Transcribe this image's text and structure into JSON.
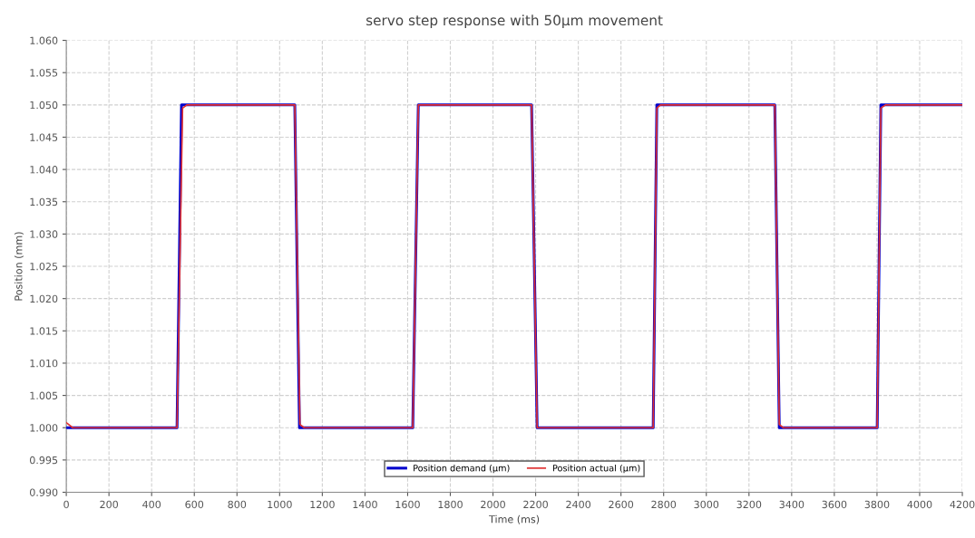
{
  "chart_data": {
    "type": "line",
    "title": "servo step response with 50µm movement",
    "xlabel": "Time (ms)",
    "ylabel": "Position (mm)",
    "series": [
      {
        "name": "Position demand (µm)",
        "color": "#0000cc",
        "x": [
          0,
          519,
          540,
          1071,
          1093,
          1624,
          1650,
          2181,
          2207,
          2751,
          2768,
          3321,
          3342,
          3801,
          3818,
          4200
        ],
        "values": [
          1.0,
          1.0,
          1.05,
          1.05,
          1.0,
          1.0,
          1.05,
          1.05,
          1.0,
          1.0,
          1.05,
          1.05,
          1.0,
          1.0,
          1.05,
          1.05
        ]
      },
      {
        "name": "Position actual (µm)",
        "color": "#e03030",
        "x": [
          0,
          30,
          519,
          545,
          565,
          1071,
          1095,
          1115,
          1624,
          1650,
          2181,
          2207,
          2751,
          2768,
          2785,
          3321,
          3342,
          3360,
          3801,
          3818,
          3840,
          4200
        ],
        "values": [
          1.0008,
          1.0,
          1.0,
          1.0495,
          1.05,
          1.05,
          1.0005,
          1.0,
          1.0,
          1.05,
          1.05,
          1.0,
          1.0,
          1.0495,
          1.05,
          1.05,
          1.0005,
          1.0,
          1.0,
          1.0495,
          1.05,
          1.05
        ]
      }
    ],
    "xlim": [
      0,
      4200
    ],
    "xticks": [
      0,
      200,
      400,
      600,
      800,
      1000,
      1200,
      1400,
      1600,
      1800,
      2000,
      2200,
      2400,
      2600,
      2800,
      3000,
      3200,
      3400,
      3600,
      3800,
      4000,
      4200
    ],
    "ylim": [
      0.99,
      1.06
    ],
    "yticks": [
      {
        "value": 0.99,
        "label": "0.990"
      },
      {
        "value": 0.995,
        "label": "0.995"
      },
      {
        "value": 1.0,
        "label": "1.000"
      },
      {
        "value": 1.005,
        "label": "1.005"
      },
      {
        "value": 1.01,
        "label": "1.010"
      },
      {
        "value": 1.015,
        "label": "1.015"
      },
      {
        "value": 1.02,
        "label": "1.020"
      },
      {
        "value": 1.025,
        "label": "1.025"
      },
      {
        "value": 1.03,
        "label": "1.030"
      },
      {
        "value": 1.035,
        "label": "1.035"
      },
      {
        "value": 1.04,
        "label": "1.040"
      },
      {
        "value": 1.045,
        "label": "1.045"
      },
      {
        "value": 1.05,
        "label": "1.050"
      },
      {
        "value": 1.055,
        "label": "1.055"
      },
      {
        "value": 1.06,
        "label": "1.060"
      }
    ],
    "grid": true,
    "legend": "bottom",
    "line_style": "solid",
    "marker": "none"
  }
}
